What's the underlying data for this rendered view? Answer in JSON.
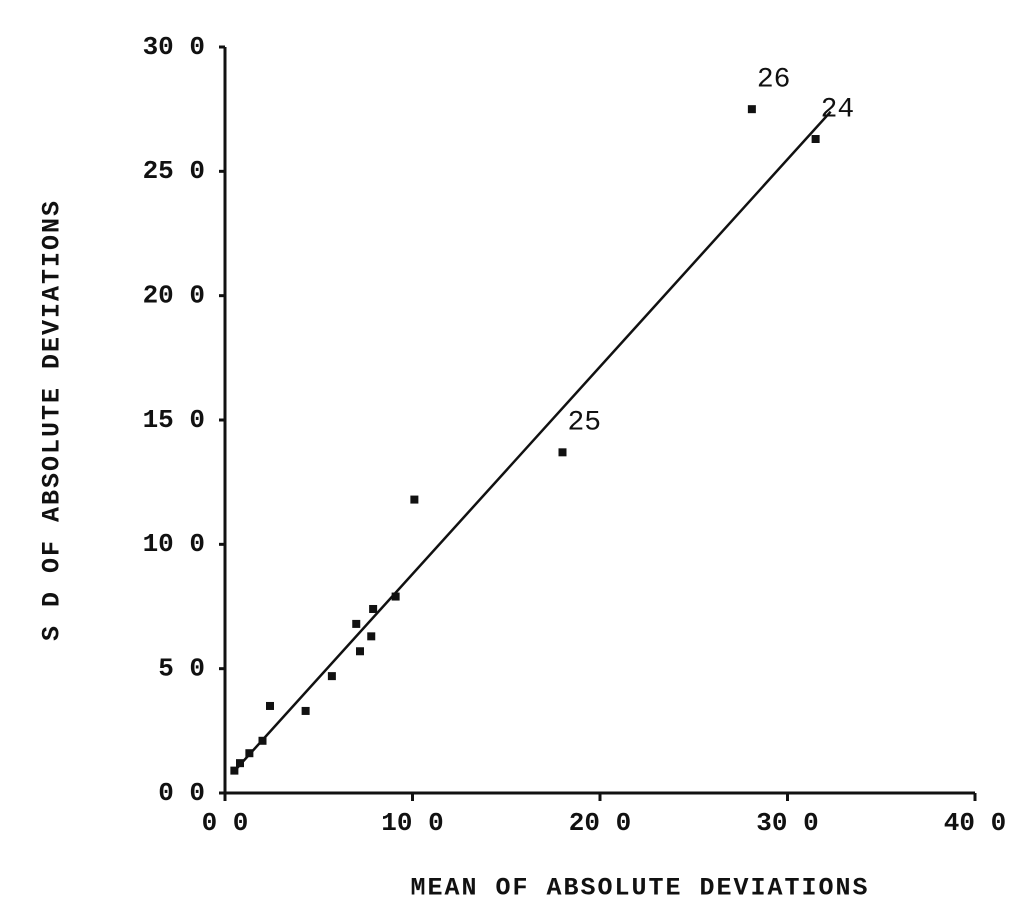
{
  "chart_data": {
    "type": "scatter",
    "x_label": "MEAN OF ABSOLUTE DEVIATIONS",
    "y_label": "S D OF ABSOLUTE DEVIATIONS",
    "x": [
      28.1,
      31.5,
      18.0,
      10.1,
      9.1,
      7.9,
      7.0,
      7.8,
      7.2,
      5.7,
      4.3,
      2.4,
      2.0,
      1.3,
      0.8,
      0.5
    ],
    "values": [
      27.5,
      26.3,
      13.7,
      11.8,
      7.9,
      7.4,
      6.8,
      6.3,
      5.7,
      4.7,
      3.3,
      3.5,
      2.1,
      1.6,
      1.2,
      0.9
    ],
    "point_labels": [
      "26",
      "24",
      "25",
      null,
      null,
      null,
      null,
      null,
      null,
      null,
      null,
      null,
      null,
      null,
      null,
      null
    ],
    "color": "#111111",
    "fit_line": {
      "x": [
        0.4,
        32.3
      ],
      "y": [
        0.8,
        27.4
      ]
    },
    "xlim": [
      0,
      40
    ],
    "ylim": [
      0,
      30
    ],
    "xticks": [
      {
        "value": 0,
        "label": "0 0"
      },
      {
        "value": 10,
        "label": "10 0"
      },
      {
        "value": 20,
        "label": "20 0"
      },
      {
        "value": 30,
        "label": "30 0"
      },
      {
        "value": 40,
        "label": "40 0"
      }
    ],
    "yticks": [
      {
        "value": 0,
        "label": "0 0"
      },
      {
        "value": 5,
        "label": "5 0"
      },
      {
        "value": 10,
        "label": "10 0"
      },
      {
        "value": 15,
        "label": "15 0"
      },
      {
        "value": 20,
        "label": "20 0"
      },
      {
        "value": 25,
        "label": "25 0"
      },
      {
        "value": 30,
        "label": "30 0"
      }
    ]
  }
}
